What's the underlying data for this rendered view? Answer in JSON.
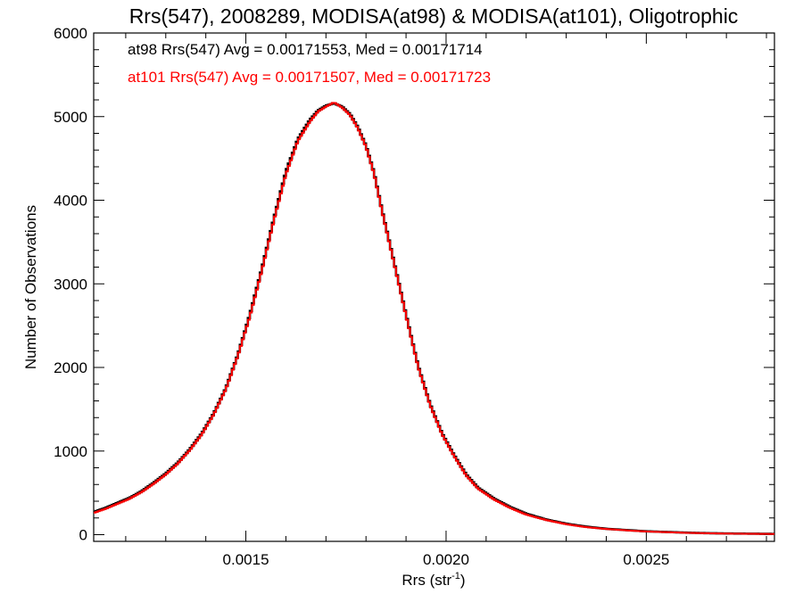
{
  "chart_data": {
    "type": "line",
    "title": "Rrs(547), 2008289, MODISA(at98) & MODISA(at101), Oligotrophic",
    "xlabel_main": "Rrs (str",
    "xlabel_sup": "-1",
    "xlabel_close": ")",
    "ylabel": "Number of Observations",
    "xlim": [
      0.00112,
      0.00282
    ],
    "ylim": [
      -80,
      6000
    ],
    "x_ticks": [
      {
        "value": 0.0015,
        "label": "0.0015"
      },
      {
        "value": 0.002,
        "label": "0.0020"
      },
      {
        "value": 0.0025,
        "label": "0.0025"
      }
    ],
    "x_minor_step": 0.0001,
    "y_ticks": [
      {
        "value": 0,
        "label": "0"
      },
      {
        "value": 1000,
        "label": "1000"
      },
      {
        "value": 2000,
        "label": "2000"
      },
      {
        "value": 3000,
        "label": "3000"
      },
      {
        "value": 4000,
        "label": "4000"
      },
      {
        "value": 5000,
        "label": "5000"
      },
      {
        "value": 6000,
        "label": "6000"
      }
    ],
    "y_minor_step": 200,
    "grid": false,
    "legend_position": "top-left",
    "series": [
      {
        "name": "at98",
        "legend_text": "at98 Rrs(547) Avg = 0.00171553, Med = 0.00171714",
        "color": "#000000",
        "x": [
          0.00112,
          0.00115,
          0.00118,
          0.00121,
          0.00124,
          0.00127,
          0.0013,
          0.00133,
          0.00136,
          0.00139,
          0.00142,
          0.00145,
          0.00148,
          0.00151,
          0.00154,
          0.00157,
          0.0016,
          0.00163,
          0.00166,
          0.00168,
          0.0017,
          0.00172,
          0.00174,
          0.00176,
          0.00178,
          0.0018,
          0.00182,
          0.00184,
          0.00187,
          0.0019,
          0.00193,
          0.00196,
          0.00199,
          0.00202,
          0.00205,
          0.00208,
          0.00212,
          0.00216,
          0.0022,
          0.00225,
          0.0023,
          0.00235,
          0.0024,
          0.00245,
          0.0025,
          0.00255,
          0.0026,
          0.00265,
          0.0027,
          0.00275,
          0.0028,
          0.00282
        ],
        "y": [
          270,
          320,
          380,
          440,
          520,
          620,
          730,
          860,
          1020,
          1210,
          1450,
          1750,
          2150,
          2630,
          3180,
          3780,
          4340,
          4730,
          4960,
          5070,
          5130,
          5160,
          5120,
          5030,
          4870,
          4650,
          4330,
          3880,
          3260,
          2630,
          2020,
          1560,
          1210,
          950,
          720,
          560,
          430,
          330,
          250,
          180,
          130,
          95,
          70,
          55,
          40,
          32,
          24,
          18,
          14,
          12,
          10,
          9
        ]
      },
      {
        "name": "at101",
        "legend_text": "at101 Rrs(547) Avg = 0.00171507, Med = 0.00171723",
        "color": "#ff0000",
        "x": [
          0.00112,
          0.00115,
          0.00118,
          0.00121,
          0.00124,
          0.00127,
          0.0013,
          0.00133,
          0.00136,
          0.00139,
          0.00142,
          0.00145,
          0.00148,
          0.00151,
          0.00154,
          0.00157,
          0.0016,
          0.00163,
          0.00166,
          0.00168,
          0.0017,
          0.00172,
          0.00174,
          0.00176,
          0.00178,
          0.0018,
          0.00182,
          0.00184,
          0.00187,
          0.0019,
          0.00193,
          0.00196,
          0.00199,
          0.00202,
          0.00205,
          0.00208,
          0.00212,
          0.00216,
          0.0022,
          0.00225,
          0.0023,
          0.00235,
          0.0024,
          0.00245,
          0.0025,
          0.00255,
          0.0026,
          0.00265,
          0.0027,
          0.00275,
          0.0028,
          0.00282
        ],
        "y": [
          260,
          310,
          370,
          430,
          510,
          610,
          720,
          850,
          1010,
          1200,
          1440,
          1740,
          2140,
          2610,
          3160,
          3760,
          4310,
          4710,
          4940,
          5060,
          5120,
          5170,
          5110,
          5020,
          4860,
          4640,
          4320,
          3870,
          3250,
          2620,
          2010,
          1550,
          1200,
          940,
          710,
          550,
          420,
          320,
          240,
          175,
          125,
          90,
          68,
          52,
          38,
          30,
          22,
          17,
          13,
          11,
          9,
          8
        ]
      }
    ]
  }
}
